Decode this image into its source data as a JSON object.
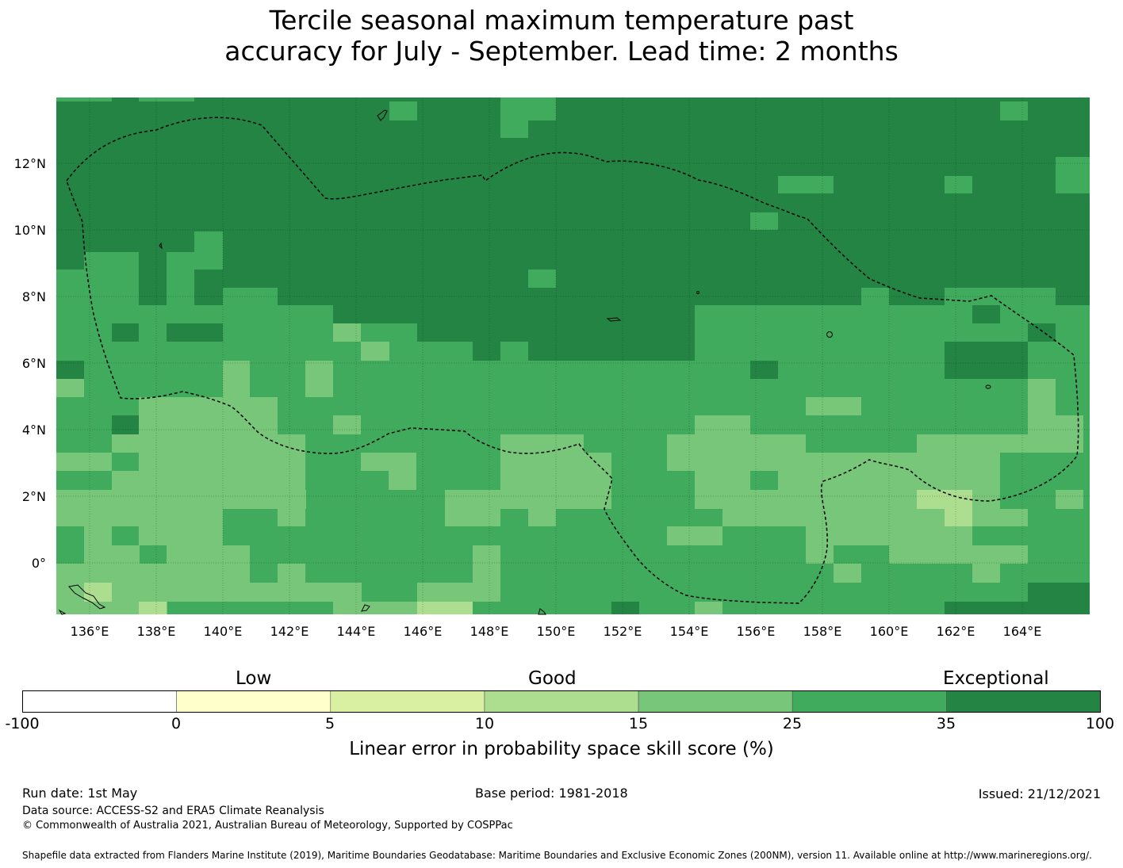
{
  "title_line1": "Tercile seasonal maximum temperature past",
  "title_line2": "accuracy for July - September. Lead time: 2 months",
  "map": {
    "lon_range": [
      135,
      166
    ],
    "lat_range": [
      -1.5,
      14
    ],
    "lon_ticks": [
      "136°E",
      "138°E",
      "140°E",
      "142°E",
      "144°E",
      "146°E",
      "148°E",
      "150°E",
      "152°E",
      "154°E",
      "156°E",
      "158°E",
      "160°E",
      "162°E",
      "164°E"
    ],
    "lat_ticks": [
      "12°N",
      "10°N",
      "8°N",
      "6°N",
      "4°N",
      "2°N",
      "0°"
    ],
    "grid": true,
    "colors": {
      "c35_100": "#238443",
      "c25_35": "#41ab5d",
      "c15_25": "#78c679",
      "c10_15": "#addd8e",
      "c5_10": "#d9f0a3"
    }
  },
  "colorbar": {
    "labels": [
      "Low",
      "Good",
      "Exceptional"
    ],
    "ticks": [
      "-100",
      "0",
      "5",
      "10",
      "15",
      "25",
      "35",
      "100"
    ],
    "colors": [
      "#ffffff",
      "#ffffcc",
      "#d9f0a3",
      "#addd8e",
      "#78c679",
      "#41ab5d",
      "#238443"
    ],
    "title": "Linear error in probability space skill score (%)"
  },
  "footer": {
    "run_date": "Run date: 1st May",
    "base_period": "Base period: 1981-2018",
    "issued": "Issued: 21/12/2021",
    "data_source": "Data source: ACCESS-S2 and ERA5 Climate Reanalysis",
    "copyright": "© Commonwealth of Australia 2021, Australian Bureau of Meteorology, Supported by COSPPac",
    "shapefile": "Shapefile data extracted from Flanders Marine Institute (2019), Maritime Boundaries Geodatabase: Maritime Boundaries and Exclusive Economic Zones (200NM), version 11. Available online at http://www.marineregions.org/."
  }
}
